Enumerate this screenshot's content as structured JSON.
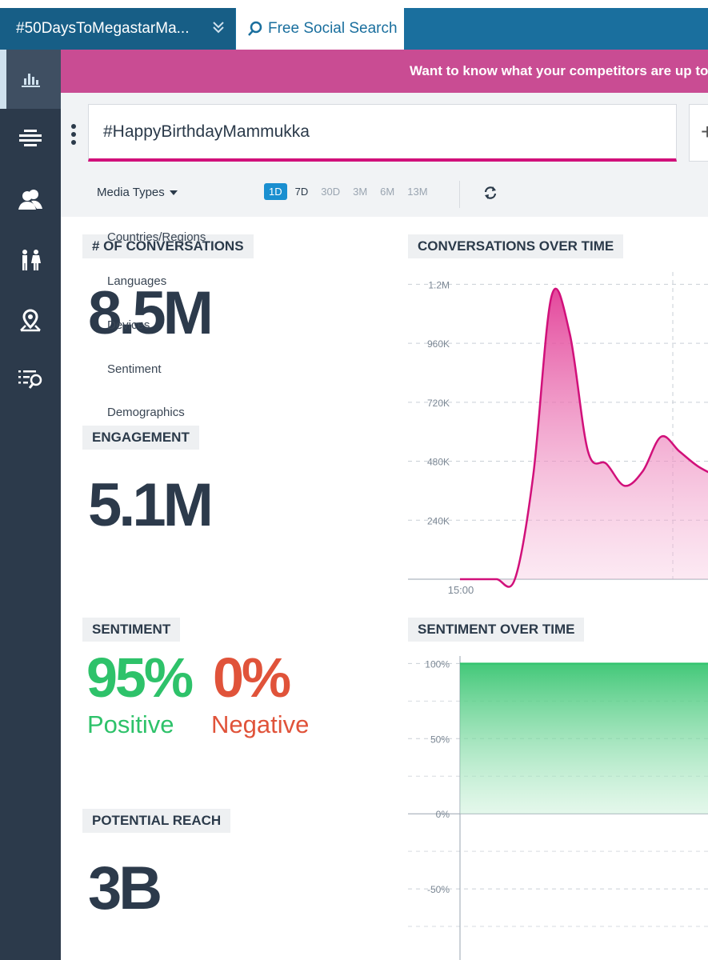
{
  "topbar": {
    "project_tab": "#50DaysToMegastarMa...",
    "search_tab": "Free Social Search"
  },
  "banner": {
    "text": "Want to know what your competitors are up to"
  },
  "query": {
    "value": "#HappyBirthdayMammukka"
  },
  "filters": {
    "media_types": "Media Types",
    "periods": [
      "1D",
      "7D",
      "30D",
      "3M",
      "6M",
      "13M"
    ],
    "selected_period": "1D",
    "menu_items": [
      "Countries/Regions",
      "Languages",
      "Devices",
      "Sentiment",
      "Demographics"
    ]
  },
  "metrics": {
    "conversations": {
      "label": "# OF CONVERSATIONS",
      "value": "8.5M"
    },
    "engagement": {
      "label": "ENGAGEMENT",
      "value": "5.1M"
    },
    "sentiment": {
      "label": "SENTIMENT",
      "positive_value": "95%",
      "positive_label": "Positive",
      "negative_value": "0%",
      "negative_label": "Negative"
    },
    "reach": {
      "label": "POTENTIAL REACH",
      "value": "3B"
    }
  },
  "colors": {
    "accent": "#1a6f9e",
    "banner": "#c94c93",
    "pink": "#d1107a",
    "positive": "#2ec26a",
    "negative": "#e0533a",
    "sidebar": "#2c3a4b"
  },
  "sidebar_icons": [
    "bar-chart-icon",
    "stream-icon",
    "users-icon",
    "demographics-icon",
    "location-icon",
    "search-list-icon"
  ],
  "chart_data": [
    {
      "type": "area",
      "title": "CONVERSATIONS OVER TIME",
      "x_tick_labels": [
        "15:00"
      ],
      "y_ticks": [
        "1.2M",
        "960K",
        "720K",
        "480K",
        "240K"
      ],
      "y_tick_values": [
        1200000,
        960000,
        720000,
        480000,
        240000
      ],
      "ylim": [
        0,
        1250000
      ],
      "series": [
        {
          "values": [
            0,
            0,
            0,
            0,
            420000,
            1150000,
            1000000,
            520000,
            470000,
            380000,
            440000,
            580000,
            520000,
            460000,
            420000
          ]
        }
      ]
    },
    {
      "type": "area",
      "title": "SENTIMENT OVER TIME",
      "y_ticks": [
        "100%",
        "50%",
        "0%",
        "-50%",
        "-100%"
      ],
      "y_tick_values": [
        100,
        50,
        0,
        -50,
        -100
      ],
      "ylim": [
        -100,
        105
      ],
      "series": [
        {
          "values": [
            100,
            100,
            100,
            100,
            100
          ]
        }
      ]
    }
  ]
}
